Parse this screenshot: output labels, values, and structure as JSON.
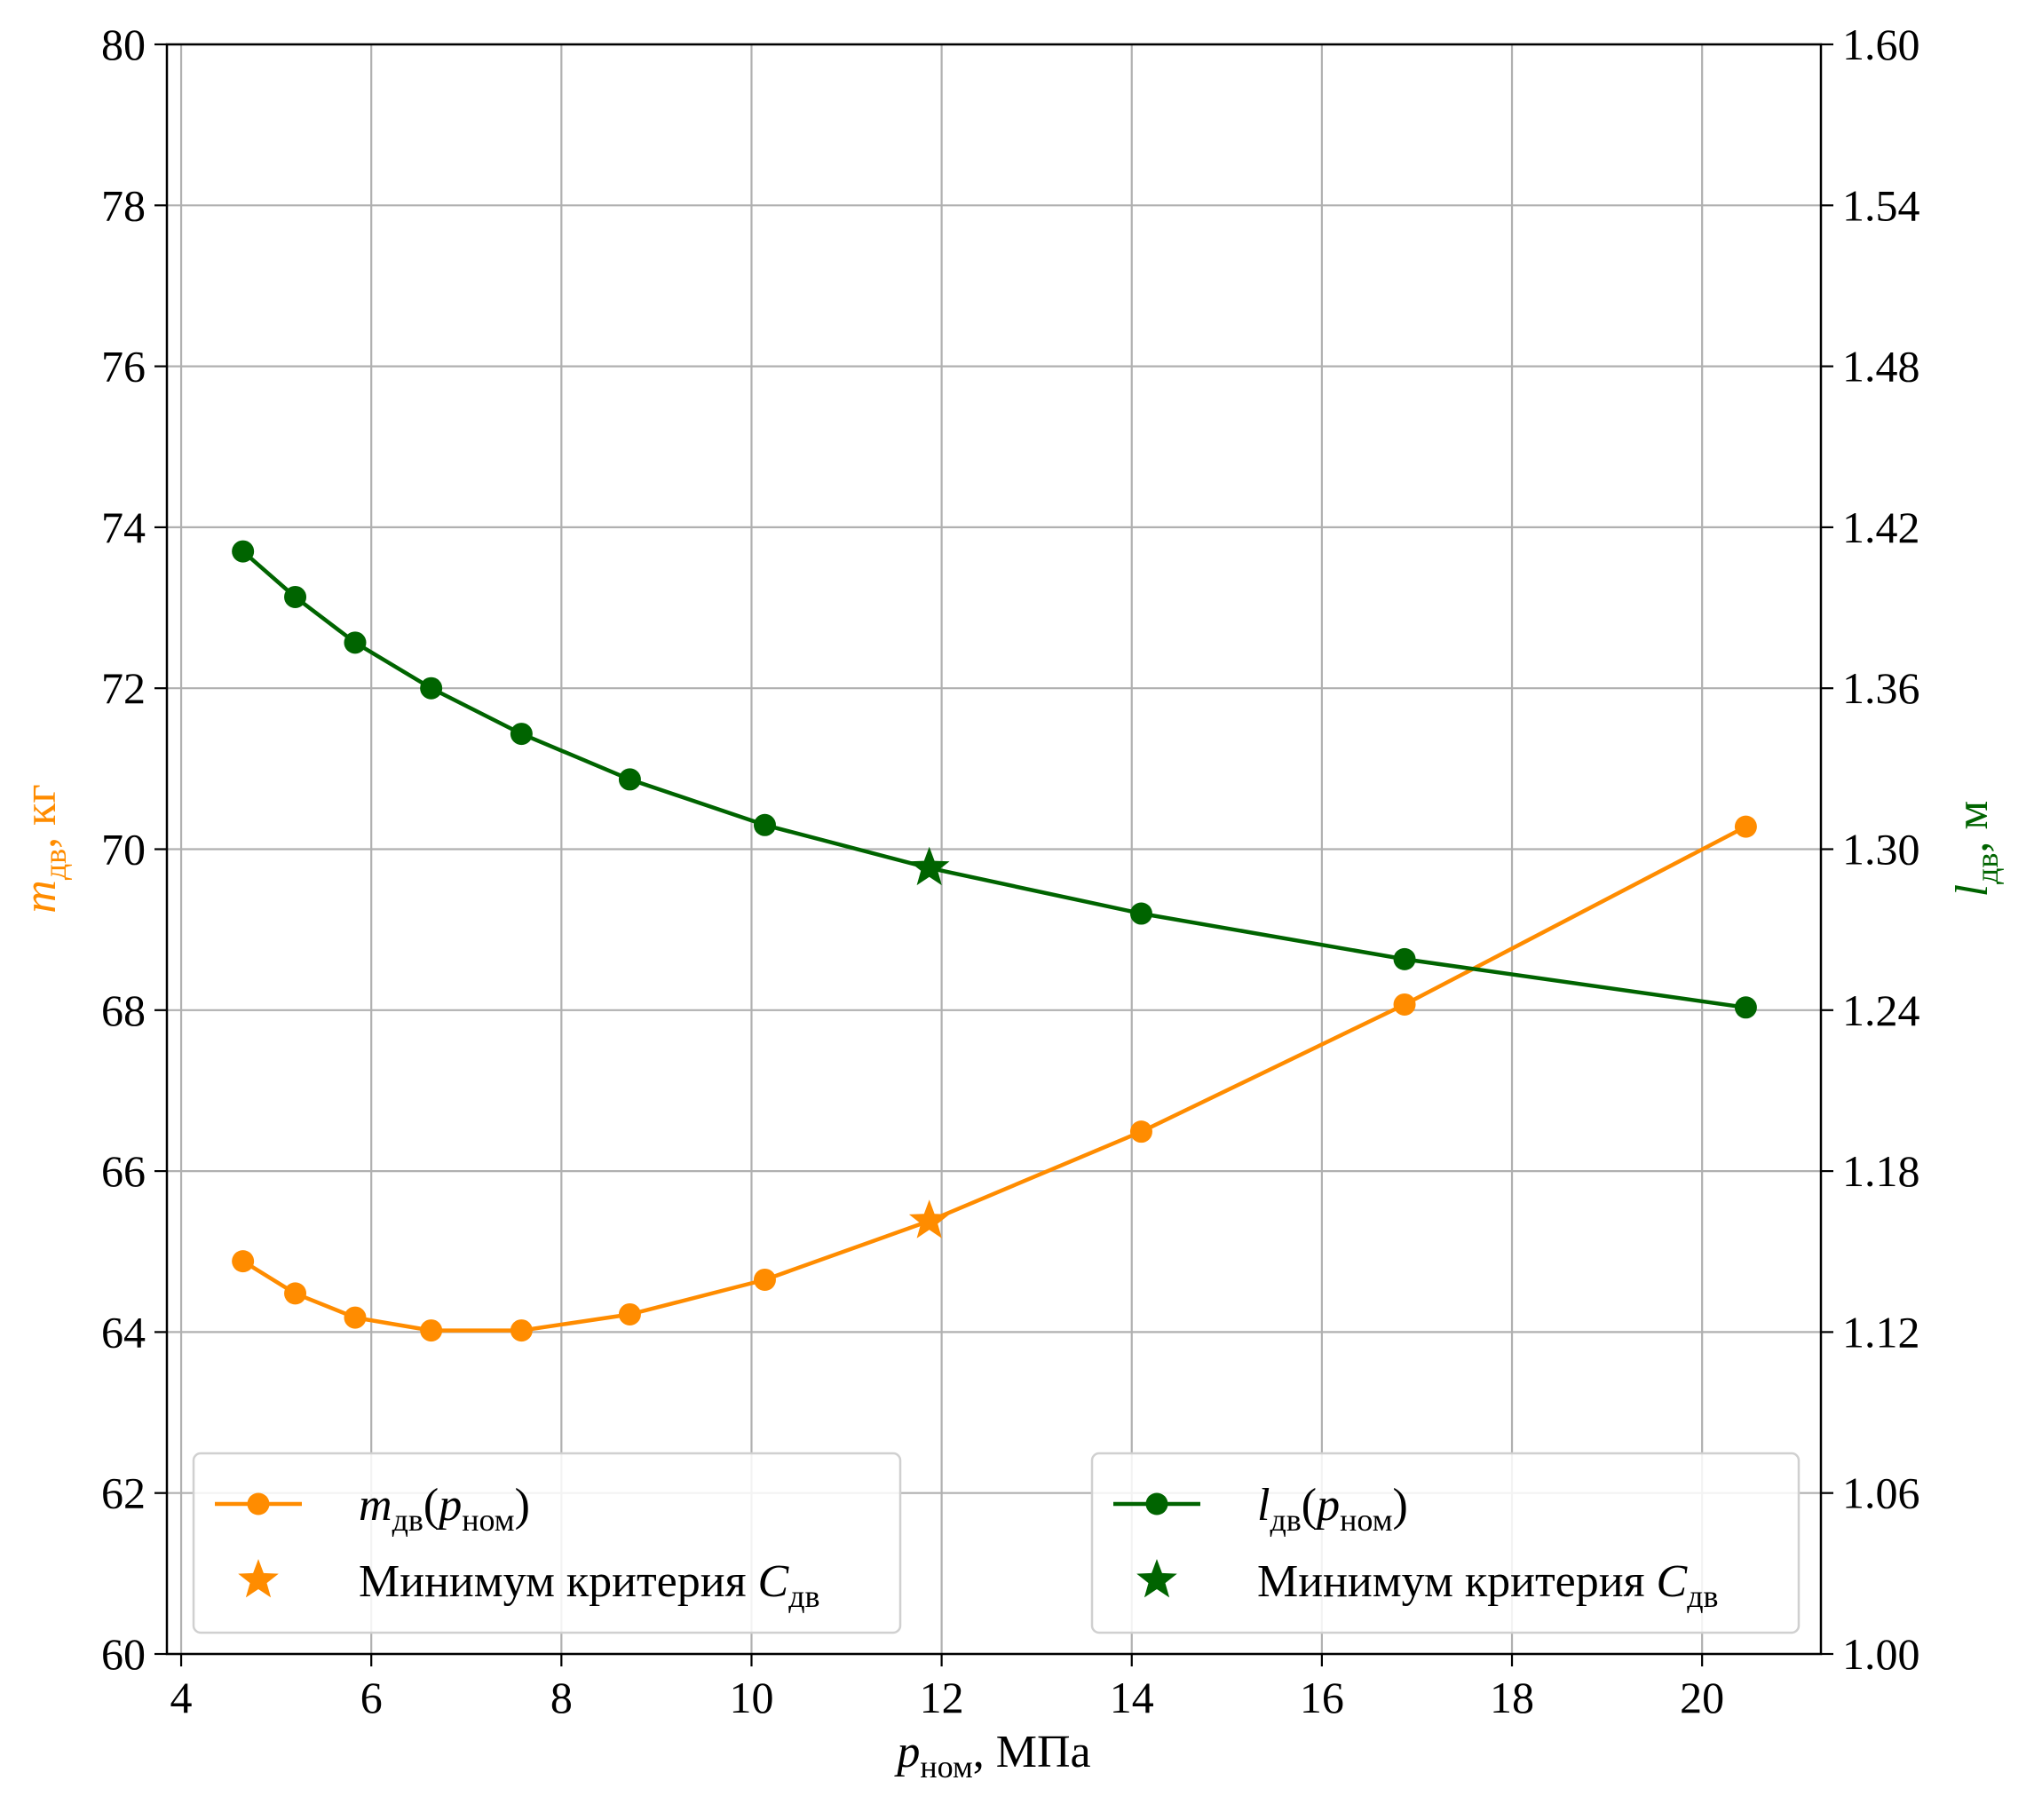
{
  "chart_data": {
    "type": "line",
    "title": "",
    "x": [
      4.65,
      5.2,
      5.83,
      6.63,
      7.58,
      8.72,
      10.14,
      11.87,
      14.1,
      16.87,
      20.46
    ],
    "xlabel": "p_ном, МПа",
    "xlabel_parts": {
      "var": "p",
      "sub": "ном",
      "unit": ", МПа"
    },
    "xlim": [
      3.85,
      21.25
    ],
    "xticks": [
      "4",
      "6",
      "8",
      "10",
      "12",
      "14",
      "16",
      "18",
      "20"
    ],
    "y_left": {
      "label_parts": {
        "var": "m",
        "sub": "дв",
        "unit": ",  кг"
      },
      "ylim": [
        60,
        80
      ],
      "ticks": [
        "60",
        "62",
        "64",
        "66",
        "68",
        "70",
        "72",
        "74",
        "76",
        "78",
        "80"
      ],
      "color": "#ff8c00"
    },
    "y_right": {
      "label_parts": {
        "var": "l",
        "sub": "дв",
        "unit": ",  м"
      },
      "ylim": [
        1.0,
        1.6
      ],
      "ticks": [
        "1.00",
        "1.06",
        "1.12",
        "1.18",
        "1.24",
        "1.30",
        "1.36",
        "1.42",
        "1.48",
        "1.54",
        "1.60"
      ],
      "color": "#006400"
    },
    "series": [
      {
        "axis": "left",
        "color": "#ff8c00",
        "values": [
          64.88,
          64.48,
          64.18,
          64.02,
          64.02,
          64.22,
          64.65,
          null,
          66.49,
          68.07,
          70.28
        ],
        "min_point": {
          "x": 11.87,
          "y": 65.38
        }
      },
      {
        "axis": "right",
        "color": "#006400",
        "values": [
          1.411,
          1.394,
          1.377,
          1.36,
          1.343,
          1.326,
          1.309,
          null,
          1.276,
          1.259,
          1.241
        ],
        "min_point": {
          "x": 11.87,
          "y": 1.293
        }
      }
    ],
    "grid": true,
    "legends": [
      {
        "placement": "bottom-left",
        "color": "#ff8c00",
        "line_entry": {
          "var": "m",
          "sub": "дв",
          "arg_open": "(",
          "arg_var": "p",
          "arg_sub": "ном",
          "arg_close": ")"
        },
        "marker_entry": {
          "text": "Минимум критерия ",
          "var": "C",
          "sub": "дв"
        }
      },
      {
        "placement": "bottom-right",
        "color": "#006400",
        "line_entry": {
          "var": "l",
          "sub": "дв",
          "arg_open": "(",
          "arg_var": "p",
          "arg_sub": "ном",
          "arg_close": ")"
        },
        "marker_entry": {
          "text": "Минимум критерия ",
          "var": "C",
          "sub": "дв"
        }
      }
    ]
  }
}
